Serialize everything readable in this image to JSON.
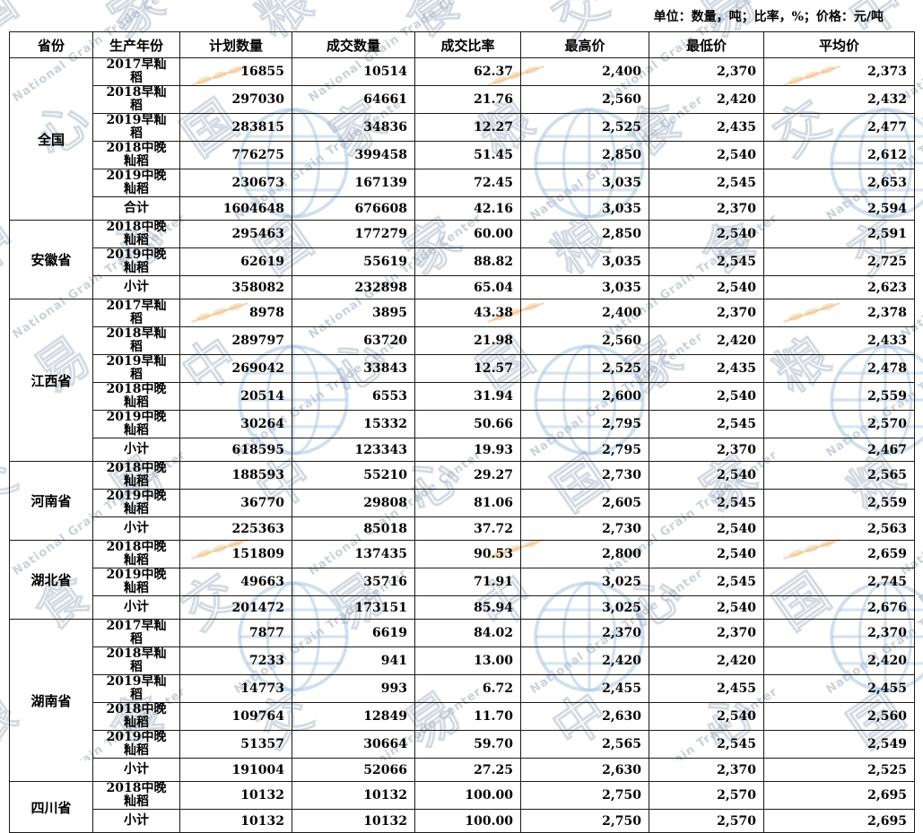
{
  "units_note": "单位：数量，吨；比率，%；价格：元/吨",
  "watermark": {
    "cn_text": "国家粮食交易中心",
    "en_text": "National Grain Trade Center",
    "globe_color": "#a9c6e0",
    "wheat_color": "#f0bd7e"
  },
  "table": {
    "columns": [
      "省份",
      "生产年份",
      "计划数量",
      "成交数量",
      "成交比率",
      "最高价",
      "最低价",
      "平均价"
    ],
    "groups": [
      {
        "province": "全国",
        "rows": [
          [
            "2017早籼稻",
            "16855",
            "10514",
            "62.37",
            "2,400",
            "2,370",
            "2,373"
          ],
          [
            "2018早籼稻",
            "297030",
            "64661",
            "21.76",
            "2,560",
            "2,420",
            "2,432"
          ],
          [
            "2019早籼稻",
            "283815",
            "34836",
            "12.27",
            "2,525",
            "2,435",
            "2,477"
          ],
          [
            "2018中晚籼稻",
            "776275",
            "399458",
            "51.45",
            "2,850",
            "2,540",
            "2,612"
          ],
          [
            "2019中晚籼稻",
            "230673",
            "167139",
            "72.45",
            "3,035",
            "2,545",
            "2,653"
          ],
          [
            "合计",
            "1604648",
            "676608",
            "42.16",
            "3,035",
            "2,370",
            "2,594"
          ]
        ]
      },
      {
        "province": "安徽省",
        "rows": [
          [
            "2018中晚籼稻",
            "295463",
            "177279",
            "60.00",
            "2,850",
            "2,540",
            "2,591"
          ],
          [
            "2019中晚籼稻",
            "62619",
            "55619",
            "88.82",
            "3,035",
            "2,545",
            "2,725"
          ],
          [
            "小计",
            "358082",
            "232898",
            "65.04",
            "3,035",
            "2,540",
            "2,623"
          ]
        ]
      },
      {
        "province": "江西省",
        "rows": [
          [
            "2017早籼稻",
            "8978",
            "3895",
            "43.38",
            "2,400",
            "2,370",
            "2,378"
          ],
          [
            "2018早籼稻",
            "289797",
            "63720",
            "21.98",
            "2,560",
            "2,420",
            "2,433"
          ],
          [
            "2019早籼稻",
            "269042",
            "33843",
            "12.57",
            "2,525",
            "2,435",
            "2,478"
          ],
          [
            "2018中晚籼稻",
            "20514",
            "6553",
            "31.94",
            "2,600",
            "2,540",
            "2,559"
          ],
          [
            "2019中晚籼稻",
            "30264",
            "15332",
            "50.66",
            "2,795",
            "2,545",
            "2,570"
          ],
          [
            "小计",
            "618595",
            "123343",
            "19.93",
            "2,795",
            "2,370",
            "2,467"
          ]
        ]
      },
      {
        "province": "河南省",
        "rows": [
          [
            "2018中晚籼稻",
            "188593",
            "55210",
            "29.27",
            "2,730",
            "2,540",
            "2,565"
          ],
          [
            "2019中晚籼稻",
            "36770",
            "29808",
            "81.06",
            "2,605",
            "2,545",
            "2,559"
          ],
          [
            "小计",
            "225363",
            "85018",
            "37.72",
            "2,730",
            "2,540",
            "2,563"
          ]
        ]
      },
      {
        "province": "湖北省",
        "rows": [
          [
            "2018中晚籼稻",
            "151809",
            "137435",
            "90.53",
            "2,800",
            "2,540",
            "2,659"
          ],
          [
            "2019中晚籼稻",
            "49663",
            "35716",
            "71.91",
            "3,025",
            "2,545",
            "2,745"
          ],
          [
            "小计",
            "201472",
            "173151",
            "85.94",
            "3,025",
            "2,540",
            "2,676"
          ]
        ]
      },
      {
        "province": "湖南省",
        "rows": [
          [
            "2017早籼稻",
            "7877",
            "6619",
            "84.02",
            "2,370",
            "2,370",
            "2,370"
          ],
          [
            "2018早籼稻",
            "7233",
            "941",
            "13.00",
            "2,420",
            "2,420",
            "2,420"
          ],
          [
            "2019早籼稻",
            "14773",
            "993",
            "6.72",
            "2,455",
            "2,455",
            "2,455"
          ],
          [
            "2018中晚籼稻",
            "109764",
            "12849",
            "11.70",
            "2,630",
            "2,540",
            "2,560"
          ],
          [
            "2019中晚籼稻",
            "51357",
            "30664",
            "59.70",
            "2,565",
            "2,545",
            "2,549"
          ],
          [
            "小计",
            "191004",
            "52066",
            "27.25",
            "2,630",
            "2,370",
            "2,525"
          ]
        ]
      },
      {
        "province": "四川省",
        "rows": [
          [
            "2018中晚籼稻",
            "10132",
            "10132",
            "100.00",
            "2,750",
            "2,570",
            "2,695"
          ],
          [
            "小计",
            "10132",
            "10132",
            "100.00",
            "2,750",
            "2,570",
            "2,695"
          ]
        ]
      }
    ]
  }
}
